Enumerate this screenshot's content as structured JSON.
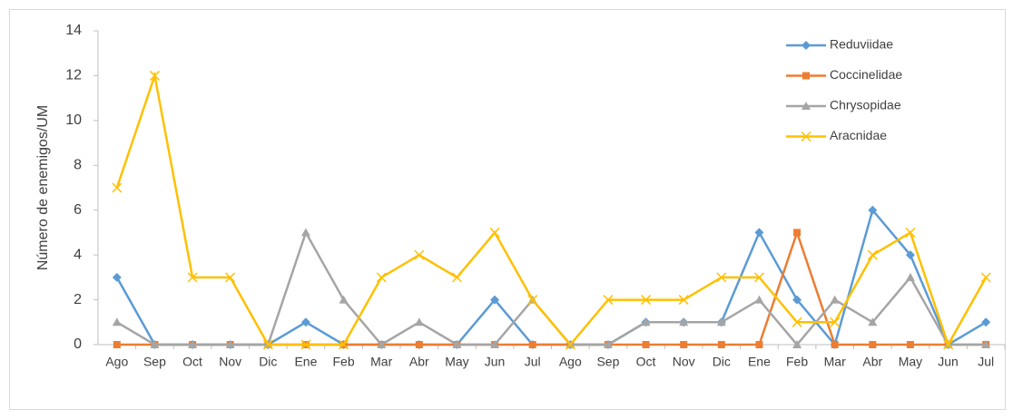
{
  "chart_data": {
    "type": "line",
    "y_label": "Número de enemigos/UM",
    "categories": [
      "Ago",
      "Sep",
      "Oct",
      "Nov",
      "Dic",
      "Ene",
      "Feb",
      "Mar",
      "Abr",
      "May",
      "Jun",
      "Jul",
      "Ago",
      "Sep",
      "Oct",
      "Nov",
      "Dic",
      "Ene",
      "Feb",
      "Mar",
      "Abr",
      "May",
      "Jun",
      "Jul"
    ],
    "series": [
      {
        "name": "Reduviidae",
        "color": "#5b9bd5",
        "marker": "diamond",
        "values": [
          3,
          0,
          0,
          0,
          0,
          1,
          0,
          0,
          0,
          0,
          2,
          0,
          0,
          0,
          1,
          1,
          1,
          5,
          2,
          0,
          6,
          4,
          0,
          1
        ]
      },
      {
        "name": "Coccinelidae",
        "color": "#ed7d31",
        "marker": "square",
        "values": [
          0,
          0,
          0,
          0,
          0,
          0,
          0,
          0,
          0,
          0,
          0,
          0,
          0,
          0,
          0,
          0,
          0,
          0,
          5,
          0,
          0,
          0,
          0,
          0
        ]
      },
      {
        "name": "Chrysopidae",
        "color": "#a5a5a5",
        "marker": "triangle",
        "values": [
          1,
          0,
          0,
          0,
          0,
          5,
          2,
          0,
          1,
          0,
          0,
          2,
          0,
          0,
          1,
          1,
          1,
          2,
          0,
          2,
          1,
          3,
          0,
          0
        ]
      },
      {
        "name": "Aracnidae",
        "color": "#ffc000",
        "marker": "x",
        "values": [
          7,
          12,
          3,
          3,
          0,
          0,
          0,
          3,
          4,
          3,
          5,
          2,
          0,
          2,
          2,
          2,
          3,
          3,
          1,
          1,
          4,
          5,
          0,
          3
        ]
      }
    ],
    "ylim": [
      0,
      14
    ],
    "yticks": [
      0,
      2,
      4,
      6,
      8,
      10,
      12,
      14
    ],
    "legend": "upper right",
    "grid": false
  }
}
